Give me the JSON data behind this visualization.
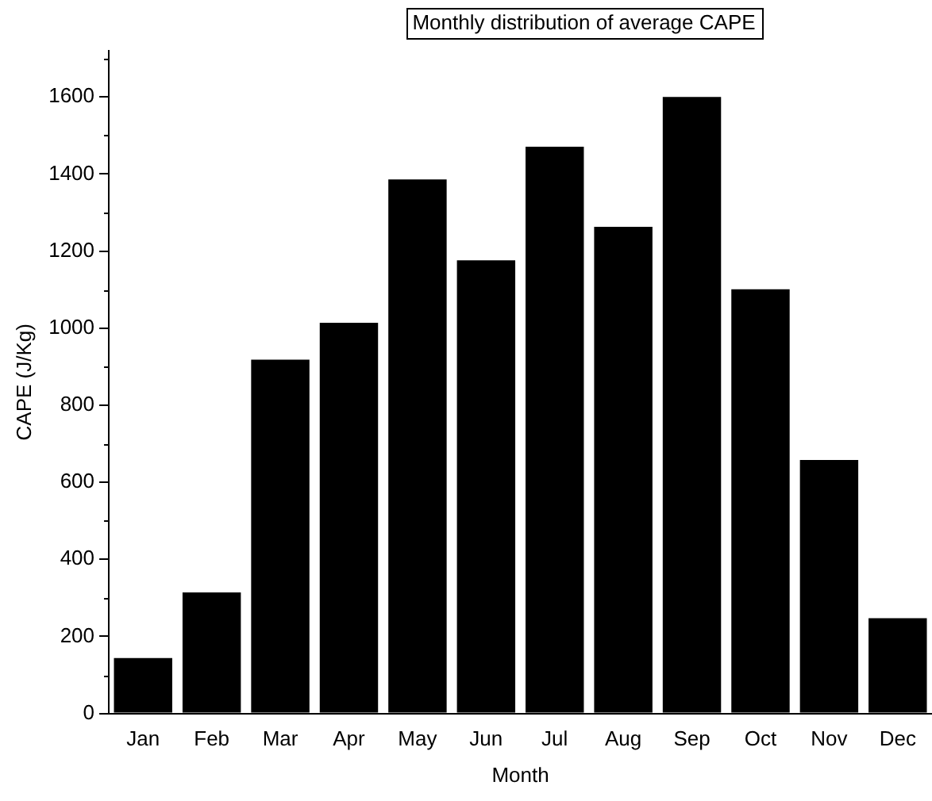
{
  "chart_data": {
    "type": "bar",
    "title": "Monthly distribution of average CAPE",
    "xlabel": "Month",
    "ylabel": "CAPE (J/Kg)",
    "categories": [
      "Jan",
      "Feb",
      "Mar",
      "Apr",
      "May",
      "Jun",
      "Jul",
      "Aug",
      "Sep",
      "Oct",
      "Nov",
      "Dec"
    ],
    "values": [
      144,
      314,
      918,
      1014,
      1386,
      1176,
      1471,
      1263,
      1600,
      1101,
      658,
      247
    ],
    "color": "#000000",
    "ylim": [
      0,
      1720
    ],
    "yticks": [
      0,
      200,
      400,
      600,
      800,
      1000,
      1200,
      1400,
      1600
    ],
    "grid": false,
    "legend": false
  }
}
